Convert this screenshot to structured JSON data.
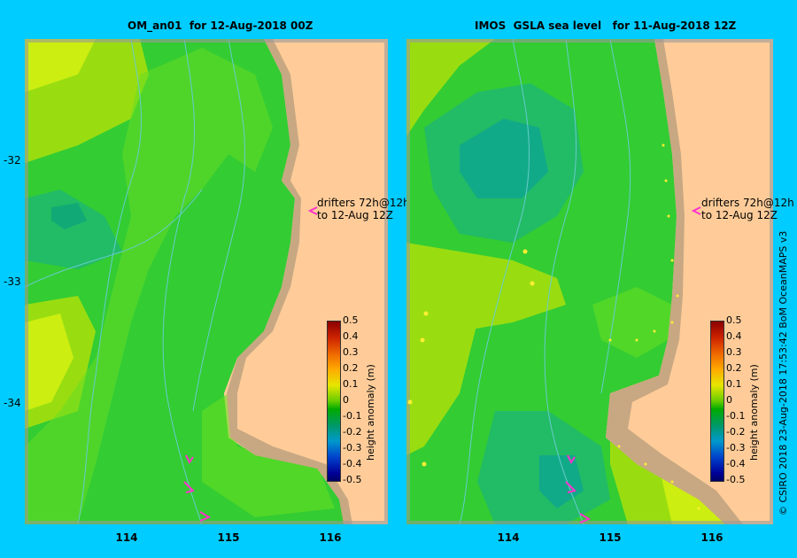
{
  "panels": [
    {
      "title": "OM_an01  for 12-Aug-2018 00Z",
      "drifter_note": "drifters 72h@12h\nto 12-Aug 12Z",
      "colorbar_title": "height anomaly (m)"
    },
    {
      "title": "IMOS  GSLA sea level   for 11-Aug-2018 12Z",
      "drifter_note": "drifters 72h@12h\nto 12-Aug 12Z",
      "colorbar_title": "height anomaly (m)"
    }
  ],
  "lat_labels": [
    "-32",
    "-33",
    "-34"
  ],
  "lon_labels": [
    "114",
    "115",
    "116"
  ],
  "colorbar_ticks": [
    "0.5",
    "0.4",
    "0.3",
    "0.2",
    "0.1",
    "0",
    "-0.1",
    "-0.2",
    "-0.3",
    "-0.4",
    "-0.5"
  ],
  "credit": "© CSIRO 2018   23-Aug-2018 17:53:42 BoM OceanMAPS v3",
  "colors": {
    "background": "#00ccff",
    "land": "#ffcc99",
    "shelf": "#c8a882",
    "field_green": "#33cc33",
    "field_light": "#66dd22",
    "field_yellow": "#ccee11",
    "field_teal": "#22bb77",
    "contour": "#66cccc",
    "drifter_arrow": "#ff33cc"
  }
}
